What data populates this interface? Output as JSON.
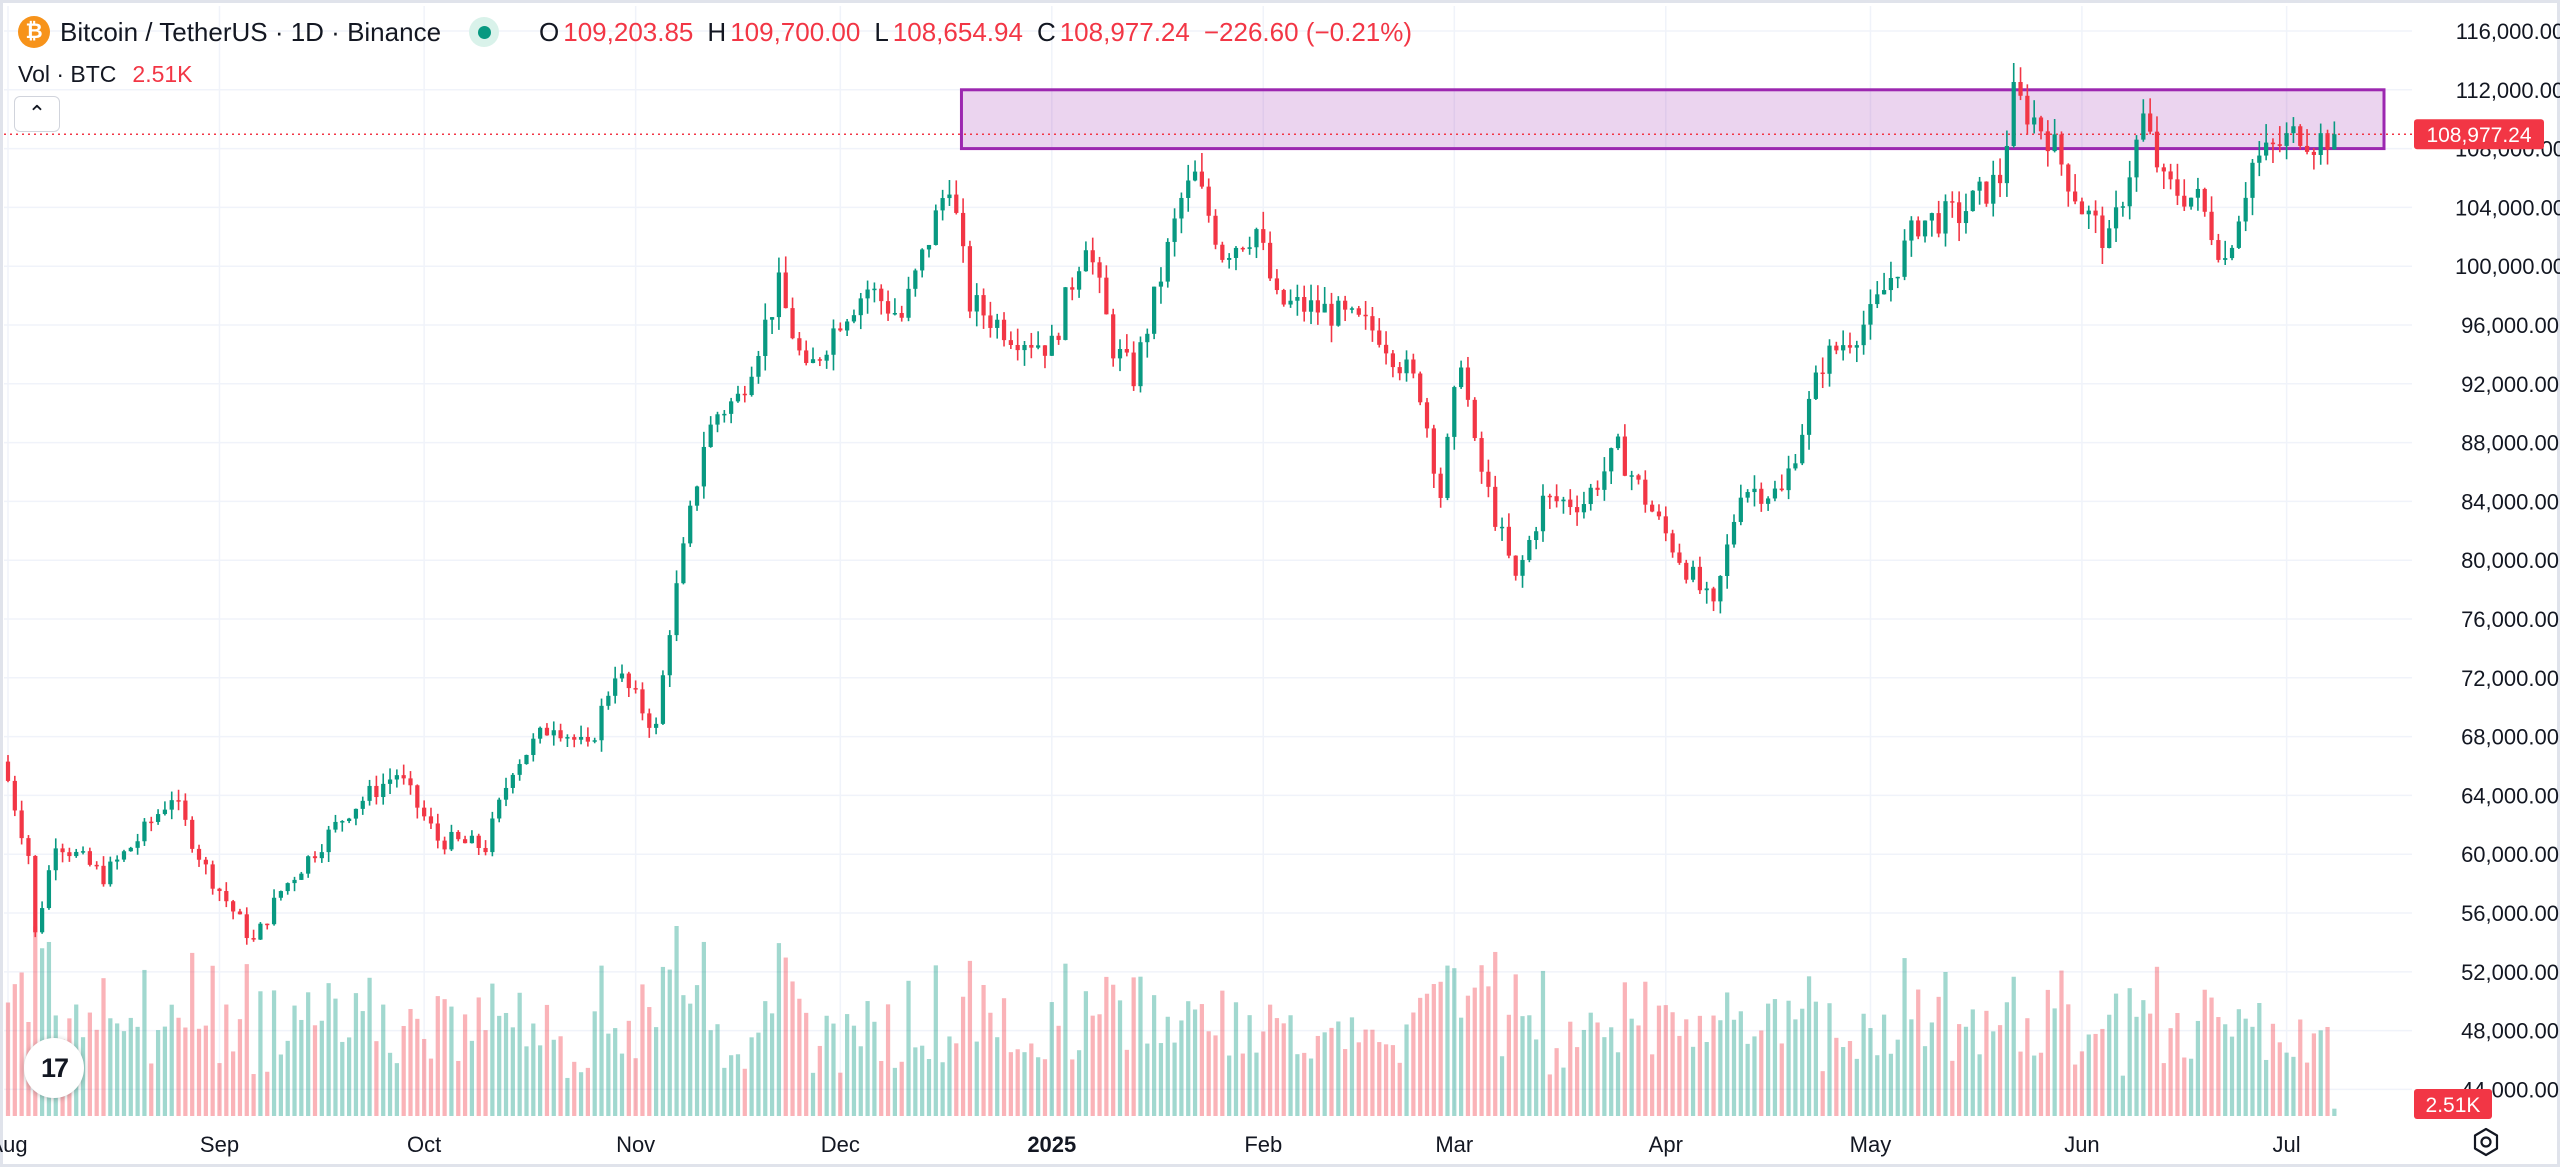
{
  "header": {
    "symbol": "Bitcoin / TetherUS · 1D · Binance",
    "coin_icon": "bitcoin-icon",
    "coin_glyph": "₿",
    "status_icon": "market-open-dot",
    "ohlc": [
      {
        "key": "O",
        "value": "109,203.85"
      },
      {
        "key": "H",
        "value": "109,700.00"
      },
      {
        "key": "L",
        "value": "108,654.94"
      },
      {
        "key": "C",
        "value": "108,977.24"
      }
    ],
    "change": "−226.60 (−0.21%)"
  },
  "volume_legend": {
    "label": "Vol · BTC",
    "value": "2.51K"
  },
  "controls": {
    "collapse_glyph": "⌃",
    "collapse_icon": "chevron-up-icon",
    "settings_icon": "gear-icon",
    "logo_text": "17",
    "logo_icon": "tradingview-logo-icon"
  },
  "colors": {
    "up": "#089981",
    "down": "#f23645",
    "zone": "#9c27b0",
    "accent": "#f7931a"
  },
  "chart_data": {
    "type": "candlestick",
    "symbol": "BTCUSDT",
    "interval": "1D",
    "price_axis": {
      "ticks": [
        "116,000.00",
        "112,000.00",
        "108,000.00",
        "104,000.00",
        "100,000.00",
        "96,000.00",
        "92,000.00",
        "88,000.00",
        "84,000.00",
        "80,000.00",
        "76,000.00",
        "72,000.00",
        "68,000.00",
        "64,000.00",
        "60,000.00",
        "56,000.00",
        "52,000.00",
        "48,000.00",
        "44,000.00"
      ],
      "ylim": [
        42600,
        117700
      ]
    },
    "time_axis": {
      "labels": [
        {
          "label": "Aug",
          "date": "2024-08-01"
        },
        {
          "label": "Sep",
          "date": "2024-09-01"
        },
        {
          "label": "Oct",
          "date": "2024-10-01"
        },
        {
          "label": "Nov",
          "date": "2024-11-01"
        },
        {
          "label": "Dec",
          "date": "2024-12-01"
        },
        {
          "label": "2025",
          "date": "2025-01-01",
          "bold": true
        },
        {
          "label": "Feb",
          "date": "2025-02-01"
        },
        {
          "label": "Mar",
          "date": "2025-03-01"
        },
        {
          "label": "Apr",
          "date": "2025-04-01"
        },
        {
          "label": "May",
          "date": "2025-05-01"
        },
        {
          "label": "Jun",
          "date": "2025-06-01"
        },
        {
          "label": "Jul",
          "date": "2025-07-01"
        }
      ],
      "xlim": [
        "2024-08-01",
        "2025-07-10"
      ]
    },
    "last_price_label": "108,977.24",
    "last_price": 108977.24,
    "last_volume_label": "2.51K",
    "resistance_zone": {
      "from_date": "2024-12-17",
      "to_date": "2025-07-10",
      "low": 108000,
      "high": 112000
    },
    "price_path": [
      [
        "2024-08-01",
        65000
      ],
      [
        "2024-08-04",
        60000
      ],
      [
        "2024-08-05",
        54500
      ],
      [
        "2024-08-08",
        61000
      ],
      [
        "2024-08-15",
        58500
      ],
      [
        "2024-08-20",
        61000
      ],
      [
        "2024-08-25",
        64000
      ],
      [
        "2024-08-30",
        59000
      ],
      [
        "2024-09-06",
        54000
      ],
      [
        "2024-09-10",
        57500
      ],
      [
        "2024-09-20",
        63000
      ],
      [
        "2024-09-27",
        65500
      ],
      [
        "2024-10-03",
        61000
      ],
      [
        "2024-10-10",
        60500
      ],
      [
        "2024-10-14",
        66000
      ],
      [
        "2024-10-20",
        69000
      ],
      [
        "2024-10-25",
        67000
      ],
      [
        "2024-10-29",
        72500
      ],
      [
        "2024-11-04",
        68500
      ],
      [
        "2024-11-06",
        75500
      ],
      [
        "2024-11-11",
        88000
      ],
      [
        "2024-11-13",
        90000
      ],
      [
        "2024-11-16",
        91000
      ],
      [
        "2024-11-22",
        98500
      ],
      [
        "2024-11-26",
        92500
      ],
      [
        "2024-12-01",
        96500
      ],
      [
        "2024-12-05",
        98500
      ],
      [
        "2024-12-10",
        96500
      ],
      [
        "2024-12-17",
        106000
      ],
      [
        "2024-12-20",
        97500
      ],
      [
        "2024-12-26",
        95500
      ],
      [
        "2025-01-01",
        94500
      ],
      [
        "2025-01-06",
        102000
      ],
      [
        "2025-01-10",
        94500
      ],
      [
        "2025-01-13",
        92500
      ],
      [
        "2025-01-20",
        104500
      ],
      [
        "2025-01-22",
        106000
      ],
      [
        "2025-01-26",
        101000
      ],
      [
        "2025-01-31",
        102500
      ],
      [
        "2025-02-03",
        97500
      ],
      [
        "2025-02-10",
        97000
      ],
      [
        "2025-02-18",
        95500
      ],
      [
        "2025-02-24",
        91500
      ],
      [
        "2025-02-27",
        84500
      ],
      [
        "2025-03-02",
        94000
      ],
      [
        "2025-03-04",
        87500
      ],
      [
        "2025-03-10",
        78500
      ],
      [
        "2025-03-14",
        84000
      ],
      [
        "2025-03-20",
        84000
      ],
      [
        "2025-03-25",
        87500
      ],
      [
        "2025-03-31",
        82500
      ],
      [
        "2025-04-06",
        78000
      ],
      [
        "2025-04-08",
        76500
      ],
      [
        "2025-04-12",
        85000
      ],
      [
        "2025-04-18",
        84500
      ],
      [
        "2025-04-24",
        93500
      ],
      [
        "2025-05-01",
        96500
      ],
      [
        "2025-05-08",
        103000
      ],
      [
        "2025-05-14",
        103500
      ],
      [
        "2025-05-20",
        106000
      ],
      [
        "2025-05-22",
        111500
      ],
      [
        "2025-05-27",
        109000
      ],
      [
        "2025-06-01",
        104000
      ],
      [
        "2025-06-05",
        101500
      ],
      [
        "2025-06-10",
        110000
      ],
      [
        "2025-06-13",
        105500
      ],
      [
        "2025-06-18",
        104500
      ],
      [
        "2025-06-22",
        100500
      ],
      [
        "2025-06-26",
        107000
      ],
      [
        "2025-07-03",
        109200
      ],
      [
        "2025-07-05",
        108500
      ],
      [
        "2025-07-08",
        108977
      ]
    ]
  }
}
